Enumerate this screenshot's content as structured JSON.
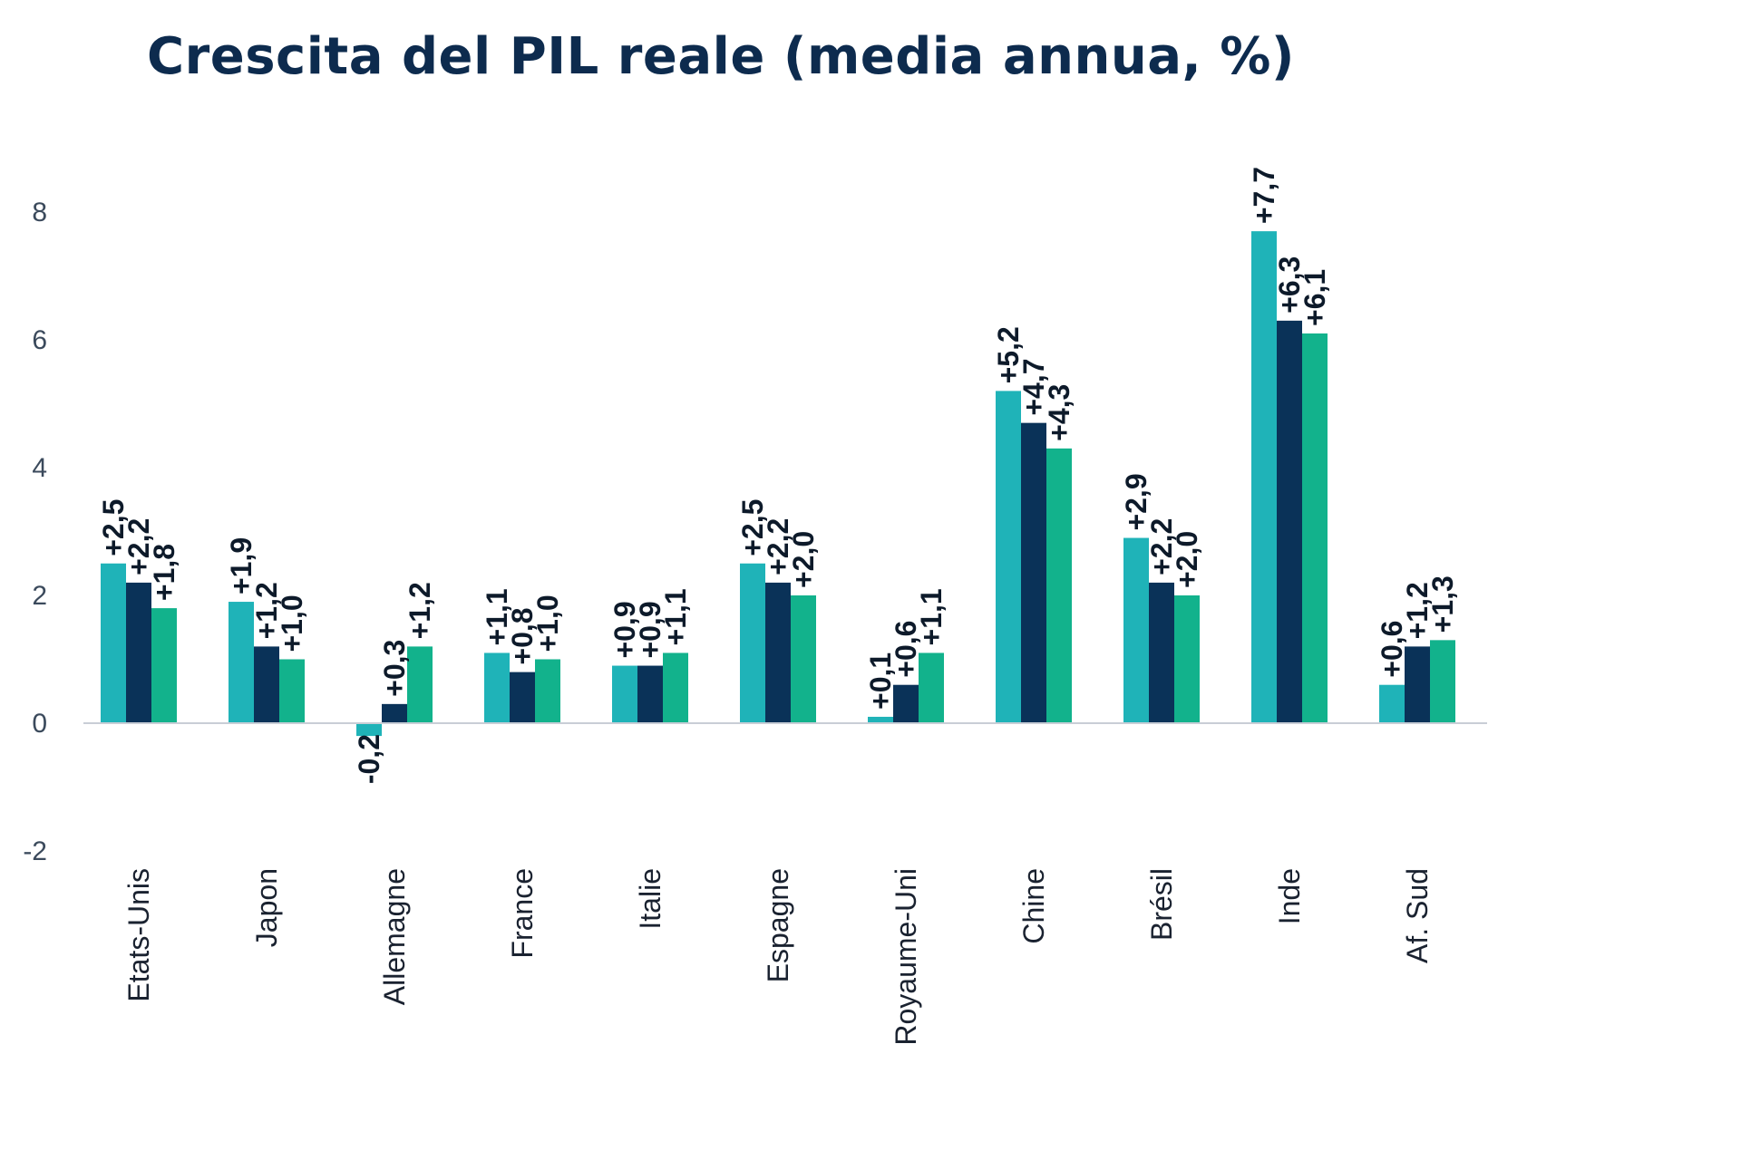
{
  "chart_data": {
    "type": "bar",
    "title": "Crescita del PIL reale (media annua, %)",
    "xlabel": "",
    "ylabel": "",
    "ylim": [
      -2,
      9
    ],
    "yticks": [
      8,
      6,
      4,
      2,
      0,
      -2
    ],
    "grid": false,
    "categories": [
      "Etats-Unis",
      "Japon",
      "Allemagne",
      "France",
      "Italie",
      "Espagne",
      "Royaume-Uni",
      "Chine",
      "Brésil",
      "Inde",
      "Af. Sud"
    ],
    "series": [
      {
        "color": "#1fb3b8",
        "values": [
          2.5,
          1.9,
          -0.2,
          1.1,
          0.9,
          2.5,
          0.1,
          5.2,
          2.9,
          7.7,
          0.6
        ],
        "labels": [
          "+2,5",
          "+1,9",
          "-0,2",
          "+1,1",
          "+0,9",
          "+2,5",
          "+0,1",
          "+5,2",
          "+2,9",
          "+7,7",
          "+0,6"
        ]
      },
      {
        "color": "#0a3258",
        "values": [
          2.2,
          1.2,
          0.3,
          0.8,
          0.9,
          2.2,
          0.6,
          4.7,
          2.2,
          6.3,
          1.2
        ],
        "labels": [
          "+2,2",
          "+1,2",
          "+0,3",
          "+0,8",
          "+0,9",
          "+2,2",
          "+0,6",
          "+4,7",
          "+2,2",
          "+6,3",
          "+1,2"
        ]
      },
      {
        "color": "#12b28c",
        "values": [
          1.8,
          1.0,
          1.2,
          1.0,
          1.1,
          2.0,
          1.1,
          4.3,
          2.0,
          6.1,
          1.3
        ],
        "labels": [
          "+1,8",
          "+1,0",
          "+1,2",
          "+1,0",
          "+1,1",
          "+2,0",
          "+1,1",
          "+4,3",
          "+2,0",
          "+6,1",
          "+1,3"
        ]
      }
    ]
  }
}
